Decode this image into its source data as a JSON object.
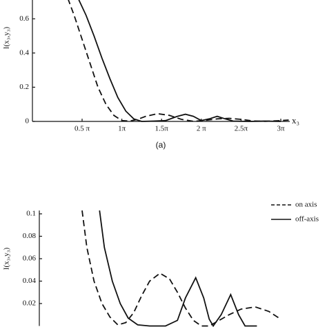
{
  "chart_data": [
    {
      "type": "line",
      "ylabel": "I(x₃,y₃)",
      "xlabel": "x₃",
      "caption": "(a)",
      "xlim": [
        -0.12,
        3.1
      ],
      "ylim": [
        0,
        0.71
      ],
      "xticks": [
        {
          "value": 0.5,
          "label": "0.5 π"
        },
        {
          "value": 1,
          "label": "1π"
        },
        {
          "value": 1.5,
          "label": "1.5π"
        },
        {
          "value": 2,
          "label": "2 π"
        },
        {
          "value": 2.5,
          "label": "2.5π"
        },
        {
          "value": 3,
          "label": "3π"
        }
      ],
      "yticks": [
        0,
        0.2,
        0.4,
        0.6
      ],
      "series": [
        {
          "style": "dashed",
          "color": "#111",
          "x": [
            0.32,
            0.4,
            0.5,
            0.6,
            0.7,
            0.8,
            0.9,
            1.0,
            1.1,
            1.2,
            1.3,
            1.45,
            1.6,
            1.75,
            1.9,
            2.05,
            2.2,
            2.35,
            2.5,
            2.65,
            2.8,
            3.0,
            3.1
          ],
          "values": [
            0.72,
            0.62,
            0.48,
            0.34,
            0.2,
            0.1,
            0.035,
            0.005,
            0.002,
            0.012,
            0.03,
            0.045,
            0.035,
            0.012,
            0.001,
            0.006,
            0.015,
            0.018,
            0.012,
            0.003,
            0.001,
            0.005,
            0.008
          ]
        },
        {
          "style": "solid",
          "color": "#111",
          "x": [
            0.45,
            0.55,
            0.65,
            0.75,
            0.85,
            0.95,
            1.05,
            1.15,
            1.25,
            1.4,
            1.55,
            1.7,
            1.8,
            1.9,
            2.0,
            2.1,
            2.2,
            2.3,
            2.4,
            2.6,
            2.8,
            3.0
          ],
          "values": [
            0.72,
            0.62,
            0.5,
            0.37,
            0.25,
            0.14,
            0.06,
            0.015,
            0.0,
            0.002,
            0.005,
            0.03,
            0.042,
            0.03,
            0.005,
            0.015,
            0.03,
            0.015,
            0.002,
            0.0,
            0.002,
            0.0
          ]
        }
      ]
    },
    {
      "type": "line",
      "ylabel": "I(x₃,y₃)",
      "xlim": [
        -0.04,
        3.1
      ],
      "ylim": [
        0,
        0.103
      ],
      "yticks": [
        0.02,
        0.04,
        0.06,
        0.08,
        0.1
      ],
      "series": [
        {
          "name": "on axis",
          "style": "dashed",
          "color": "#111",
          "x": [
            0.5,
            0.56,
            0.65,
            0.75,
            0.85,
            0.95,
            1.05,
            1.15,
            1.25,
            1.35,
            1.48,
            1.6,
            1.7,
            1.8,
            1.9,
            2.0,
            2.1,
            2.2,
            2.35,
            2.5,
            2.68,
            2.85,
            3.0
          ],
          "values": [
            0.103,
            0.07,
            0.04,
            0.02,
            0.008,
            0.001,
            0.003,
            0.012,
            0.027,
            0.04,
            0.047,
            0.042,
            0.03,
            0.016,
            0.005,
            0.0,
            0.0,
            0.004,
            0.01,
            0.015,
            0.017,
            0.013,
            0.006
          ]
        },
        {
          "name": "off-axis",
          "style": "solid",
          "color": "#111",
          "x": [
            0.72,
            0.78,
            0.88,
            0.98,
            1.08,
            1.2,
            1.35,
            1.55,
            1.7,
            1.8,
            1.93,
            2.03,
            2.1,
            2.15,
            2.25,
            2.37,
            2.47,
            2.55,
            2.7
          ],
          "values": [
            0.103,
            0.07,
            0.04,
            0.02,
            0.007,
            0.001,
            0.0,
            0.0,
            0.005,
            0.025,
            0.043,
            0.025,
            0.006,
            0.0,
            0.01,
            0.028,
            0.01,
            0.0,
            0.0
          ]
        }
      ]
    }
  ]
}
